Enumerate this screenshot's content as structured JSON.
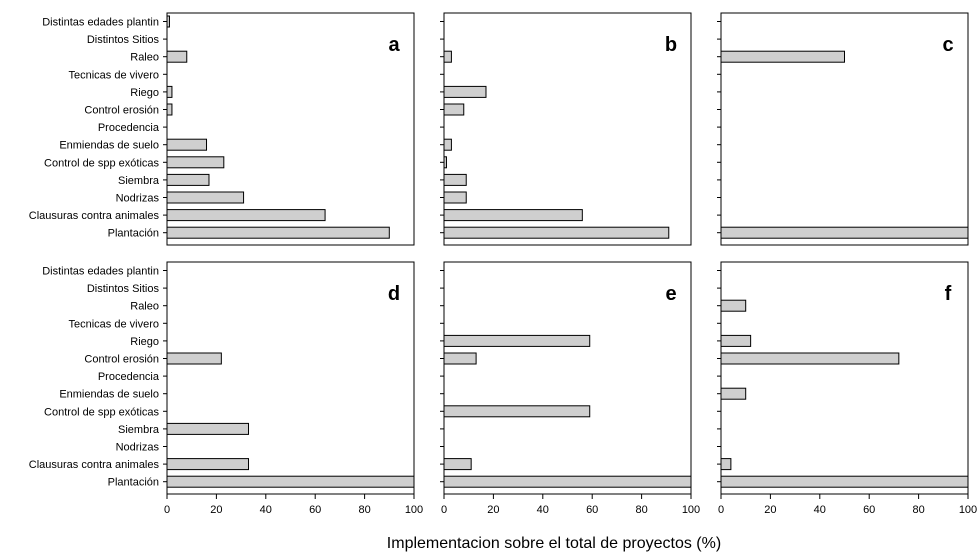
{
  "xlabel": "Implementacion sobre el total de proyectos (%)",
  "bar_color": "#cfcfcf",
  "categories": [
    "Distintas edades plantin",
    "Distintos Sitios",
    "Raleo",
    "Tecnicas de vivero",
    "Riego",
    "Control erosión",
    "Procedencia",
    "Enmiendas de suelo",
    "Control de spp exóticas",
    "Siembra",
    "Nodrizas",
    "Clausuras contra animales",
    "Plantación"
  ],
  "xticks": [
    0,
    20,
    40,
    60,
    80,
    100
  ],
  "chart_data": [
    {
      "type": "bar",
      "orientation": "horizontal",
      "panel": "a",
      "xlim": [
        0,
        100
      ],
      "values": [
        1,
        0,
        8,
        0,
        2,
        2,
        0,
        16,
        23,
        17,
        31,
        64,
        90
      ]
    },
    {
      "type": "bar",
      "orientation": "horizontal",
      "panel": "b",
      "xlim": [
        0,
        100
      ],
      "values": [
        0,
        0,
        3,
        0,
        17,
        8,
        0,
        3,
        1,
        9,
        9,
        56,
        91
      ]
    },
    {
      "type": "bar",
      "orientation": "horizontal",
      "panel": "c",
      "xlim": [
        0,
        100
      ],
      "values": [
        0,
        0,
        50,
        0,
        0,
        0,
        0,
        0,
        0,
        0,
        0,
        0,
        100
      ]
    },
    {
      "type": "bar",
      "orientation": "horizontal",
      "panel": "d",
      "xlim": [
        0,
        100
      ],
      "values": [
        0,
        0,
        0,
        0,
        0,
        22,
        0,
        0,
        0,
        33,
        0,
        33,
        100
      ]
    },
    {
      "type": "bar",
      "orientation": "horizontal",
      "panel": "e",
      "xlim": [
        0,
        100
      ],
      "values": [
        0,
        0,
        0,
        0,
        59,
        13,
        0,
        0,
        59,
        0,
        0,
        11,
        100
      ]
    },
    {
      "type": "bar",
      "orientation": "horizontal",
      "panel": "f",
      "xlim": [
        0,
        100
      ],
      "values": [
        0,
        0,
        10,
        0,
        12,
        72,
        0,
        10,
        0,
        0,
        0,
        4,
        100
      ]
    }
  ]
}
